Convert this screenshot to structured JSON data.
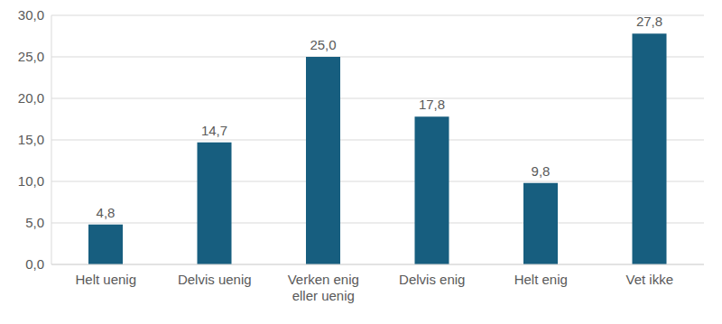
{
  "chart_data": {
    "type": "bar",
    "categories": [
      "Helt uenig",
      "Delvis uenig",
      "Verken enig eller uenig",
      "Delvis enig",
      "Helt enig",
      "Vet ikke"
    ],
    "values": [
      4.8,
      14.7,
      25.0,
      17.8,
      9.8,
      27.8
    ],
    "value_labels": [
      "4,8",
      "14,7",
      "25,0",
      "17,8",
      "9,8",
      "27,8"
    ],
    "color": "#175e7f",
    "ylim": [
      0,
      30
    ],
    "yticks": [
      {
        "value": 0,
        "label": "0,0"
      },
      {
        "value": 5,
        "label": "5,0"
      },
      {
        "value": 10,
        "label": "10,0"
      },
      {
        "value": 15,
        "label": "15,0"
      },
      {
        "value": 20,
        "label": "20,0"
      },
      {
        "value": 25,
        "label": "25,0"
      },
      {
        "value": 30,
        "label": "30,0"
      }
    ],
    "grid": true,
    "data_labels": true
  }
}
